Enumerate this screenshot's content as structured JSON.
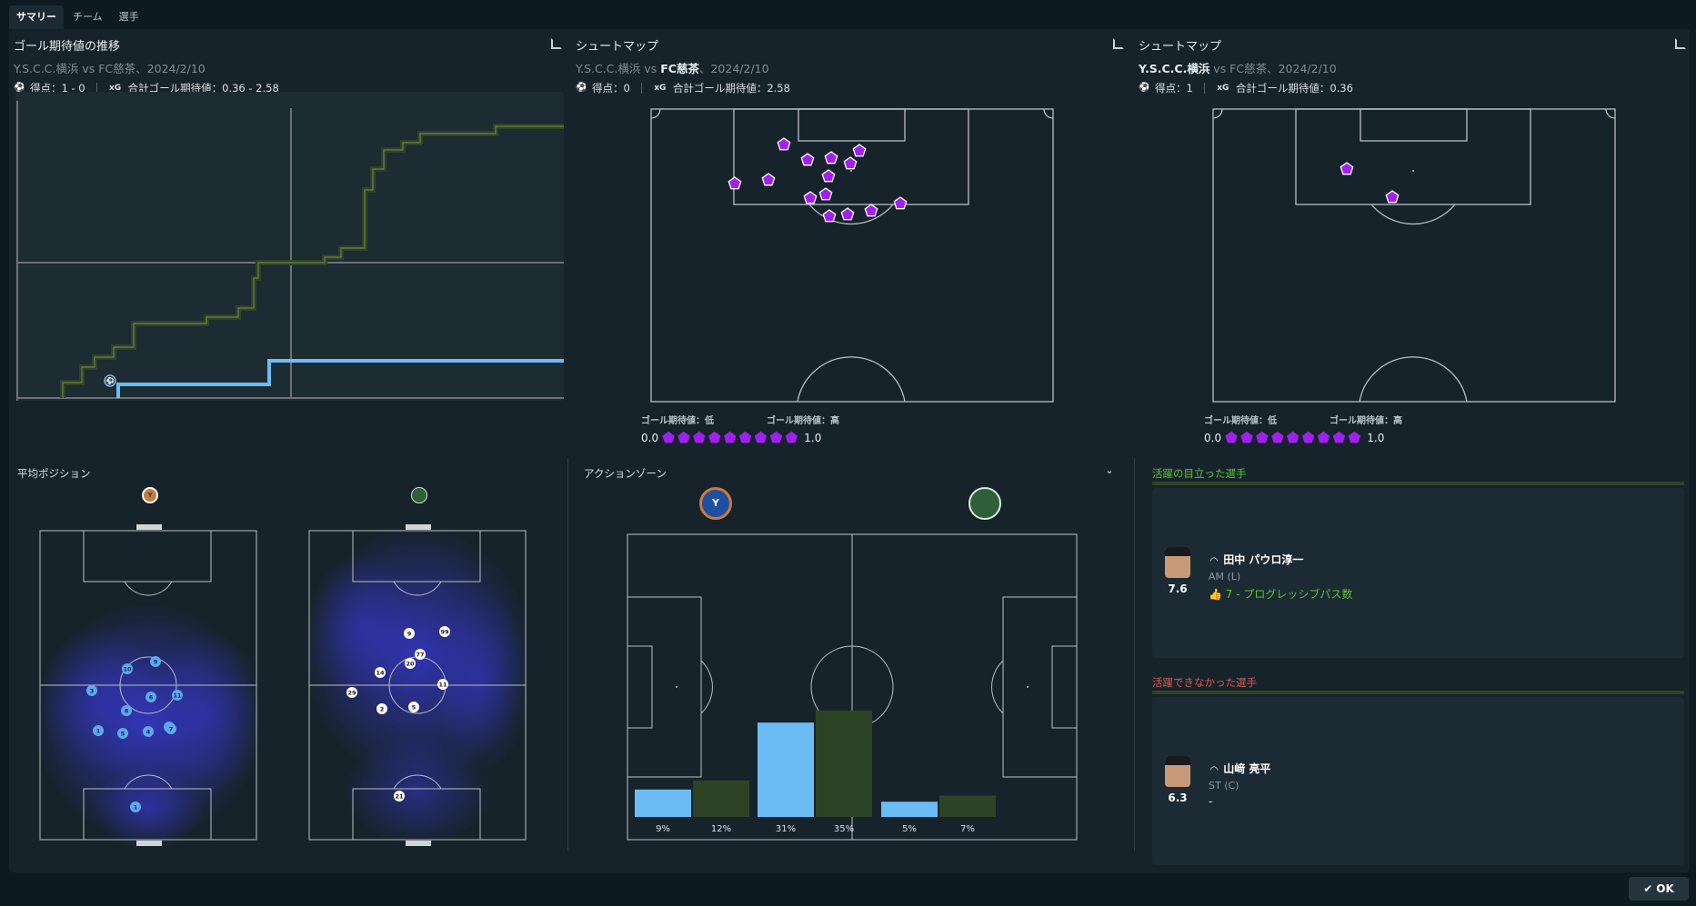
{
  "tabs": [
    "サマリー",
    "チーム",
    "選手"
  ],
  "xg_panel": {
    "title": "ゴール期待値の推移",
    "subtitle": "Y.S.C.C.横浜 vs FC慈茶、2024/2/10",
    "score_label": "得点：1 - 0",
    "xg_label": "合計ゴール期待値：0.36 - 2.58"
  },
  "shotmap_fc": {
    "title": "シュートマップ",
    "subtitle_pre": "Y.S.C.C.横浜 vs ",
    "subtitle_team": "FC慈茶",
    "subtitle_post": "、2024/2/10",
    "score_label": "得点：0",
    "xg_label": "合計ゴール期待値：2.58",
    "legend_low": "ゴール期待値：低",
    "legend_high": "ゴール期待値：高",
    "legend_min": "0.0",
    "legend_max": "1.0"
  },
  "shotmap_ysc": {
    "title": "シュートマップ",
    "subtitle_team": "Y.S.C.C.横浜",
    "subtitle_post": " vs FC慈茶、2024/2/10",
    "score_label": "得点：1",
    "xg_label": "合計ゴール期待値：0.36",
    "legend_low": "ゴール期待値：低",
    "legend_high": "ゴール期待値：高",
    "legend_min": "0.0",
    "legend_max": "1.0"
  },
  "avg_position": {
    "title": "平均ポジション",
    "home_players": [
      "10",
      "9",
      "3",
      "6",
      "11",
      "8",
      "2",
      "1",
      "5",
      "4",
      "7",
      "1"
    ],
    "away_players": [
      "9",
      "99",
      "77",
      "20",
      "14",
      "11",
      "29",
      "2",
      "5",
      "21"
    ]
  },
  "action_zone": {
    "title": "アクションゾーン",
    "zones": [
      {
        "home": "9%",
        "away": "12%"
      },
      {
        "home": "31%",
        "away": "35%"
      },
      {
        "home": "5%",
        "away": "7%"
      }
    ]
  },
  "best_player": {
    "section": "活躍の目立った選手",
    "name": "田中 パウロ淳一",
    "position": "AM (L)",
    "rating": "7.6",
    "stat": "7 - プログレッシブパス数"
  },
  "worst_player": {
    "section": "活躍できなかった選手",
    "name": "山﨑 亮平",
    "position": "ST (C)",
    "rating": "6.3",
    "stat": "-"
  },
  "ok_button": "OK",
  "colors": {
    "home": "#6bbcf5",
    "away": "#2e4226",
    "shot": "#a020f0",
    "good": "#58c437",
    "bad": "#e0584a"
  }
}
